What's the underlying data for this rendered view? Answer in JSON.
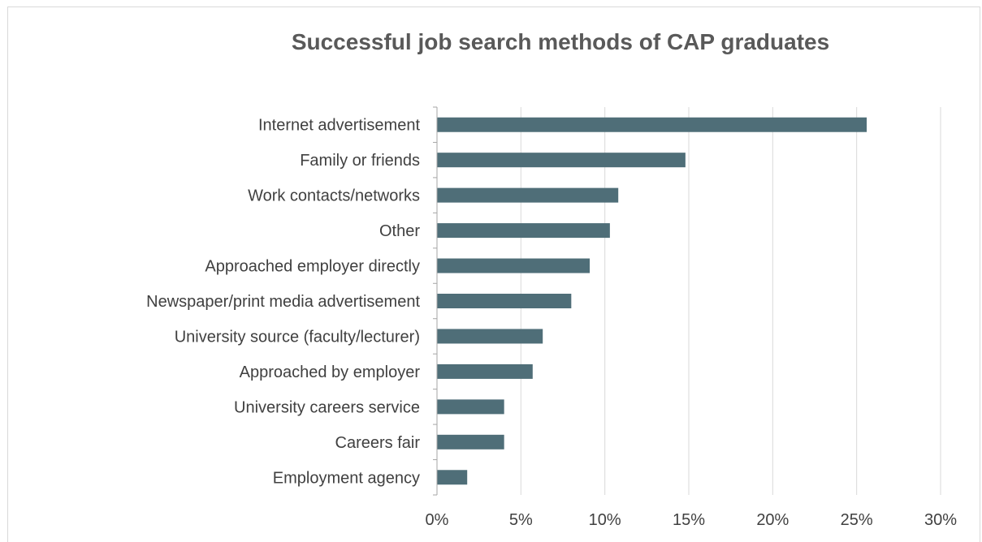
{
  "chart_data": {
    "type": "bar",
    "orientation": "horizontal",
    "title": "Successful job search methods of CAP graduates",
    "xlabel": "",
    "ylabel": "",
    "categories": [
      "Internet advertisement",
      "Family or friends",
      "Work contacts/networks",
      "Other",
      "Approached employer directly",
      "Newspaper/print media advertisement",
      "University source (faculty/lecturer)",
      "Approached by employer",
      "University careers service",
      "Careers fair",
      "Employment agency"
    ],
    "values": [
      25.6,
      14.8,
      10.8,
      10.3,
      9.1,
      8.0,
      6.3,
      5.7,
      4.0,
      4.0,
      1.8
    ],
    "xlim": [
      0,
      30
    ],
    "x_ticks": [
      0,
      5,
      10,
      15,
      20,
      25,
      30
    ],
    "x_tick_labels": [
      "0%",
      "5%",
      "10%",
      "15%",
      "20%",
      "25%",
      "30%"
    ],
    "grid": "vertical",
    "legend": "none",
    "bar_color": "#4f6e78",
    "grid_color": "#d9d9d9",
    "axis_color": "#a6a6a6"
  }
}
